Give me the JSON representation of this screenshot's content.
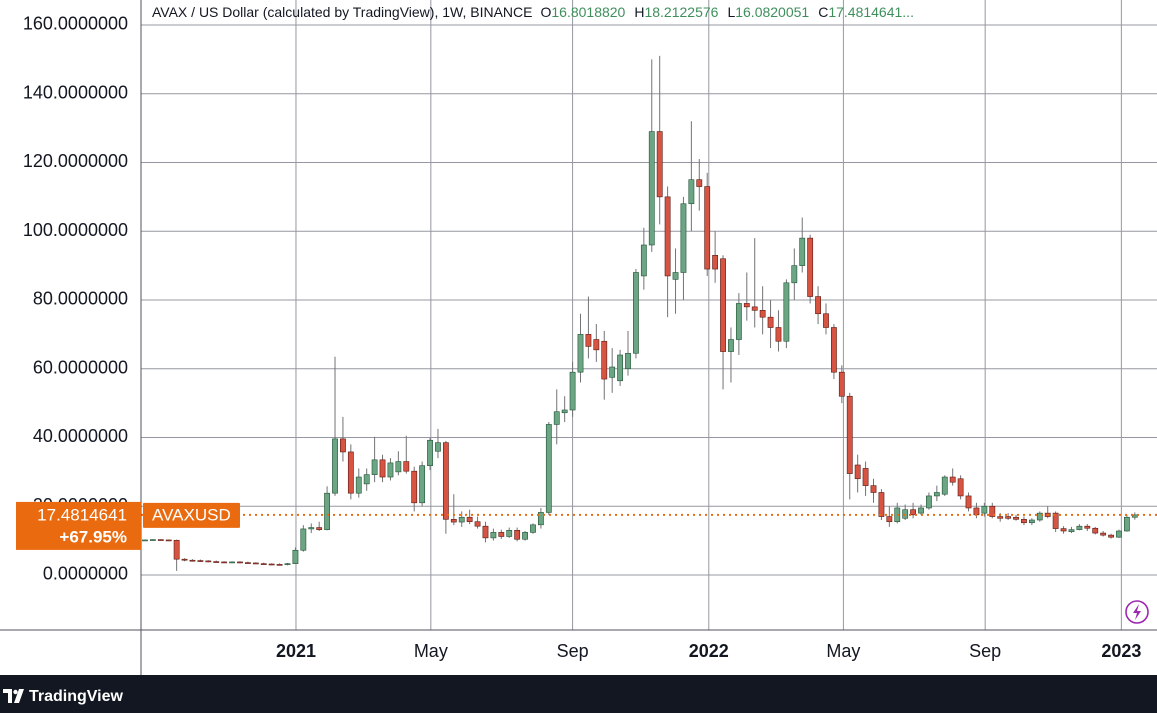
{
  "chart_data": {
    "type": "candlestick",
    "title": "AVAX / US Dollar (calculated by TradingView), 1W, BINANCE",
    "header_ohlc": [
      {
        "key": "O",
        "value": "16.8018820"
      },
      {
        "key": "H",
        "value": "18.2122576"
      },
      {
        "key": "L",
        "value": "16.0820051"
      },
      {
        "key": "C",
        "value": "17.4814641..."
      }
    ],
    "series": [
      {
        "name": "AVAXUSD",
        "up_color": "#6ba583",
        "down_color": "#d75442",
        "wick_color": "#737375",
        "open": [
          10.1,
          10.2,
          10.3,
          10.2,
          10.1,
          4.6,
          4.3,
          4.2,
          4.1,
          3.9,
          3.8,
          3.7,
          3.8,
          3.6,
          3.5,
          3.3,
          3.2,
          3.1,
          3.0,
          3.3,
          7.2,
          13.4,
          13.8,
          13.2,
          23.8,
          39.6,
          35.8,
          23.8,
          26.5,
          29.2,
          33.5,
          28.5,
          30.0,
          33.0,
          30.2,
          21.0,
          31.8,
          36.0,
          38.5,
          16.2,
          15.4,
          16.8,
          15.5,
          14.2,
          10.8,
          12.4,
          11.2,
          13.0,
          10.4,
          12.4,
          14.6,
          18.2,
          43.8,
          47.2,
          48.0,
          59.0,
          70.0,
          68.5,
          68.0,
          57.5,
          56.5,
          60.0,
          64.5,
          87.0,
          96.0,
          129.0,
          110.0,
          86.0,
          88.0,
          108.0,
          115.0,
          113.0,
          93.0,
          92.0,
          65.0,
          68.5,
          79.0,
          78.0,
          77.0,
          75.0,
          72.0,
          68.0,
          85.0,
          90.0,
          98.0,
          81.0,
          76.0,
          72.0,
          59.0,
          52.0,
          32.0,
          31.0,
          26.0,
          24.0,
          17.0,
          15.5,
          16.5,
          19.0,
          18.0,
          19.5,
          23.0,
          23.5,
          28.5,
          28.0,
          23.0,
          19.5,
          18.0,
          20.0,
          17.0,
          17.0,
          16.8,
          16.2,
          15.2,
          16.0,
          18.0,
          18.0,
          13.5,
          12.6,
          13.2,
          14.2,
          13.6,
          12.2,
          11.6,
          11.0,
          12.8,
          16.801882
        ],
        "high": [
          10.3,
          10.4,
          10.4,
          10.3,
          10.3,
          4.9,
          4.6,
          4.5,
          4.3,
          4.2,
          4.0,
          4.0,
          4.0,
          3.9,
          3.7,
          3.6,
          3.4,
          3.4,
          3.5,
          8.0,
          14.5,
          15.0,
          15.5,
          25.8,
          63.5,
          46.0,
          38.0,
          31.0,
          31.0,
          40.2,
          35.0,
          34.0,
          36.0,
          40.5,
          31.5,
          33.0,
          40.0,
          42.5,
          39.0,
          23.5,
          18.5,
          19.0,
          17.0,
          15.5,
          13.5,
          13.2,
          13.8,
          13.8,
          12.8,
          15.0,
          19.5,
          44.5,
          54.0,
          52.0,
          62.0,
          76.0,
          81.0,
          73.0,
          71.0,
          66.0,
          65.5,
          71.0,
          89.0,
          101.0,
          150.0,
          151.0,
          113.0,
          95.0,
          110.0,
          132.0,
          121.0,
          117.0,
          100.0,
          93.0,
          72.0,
          82.0,
          88.0,
          98.0,
          84.0,
          80.0,
          77.0,
          86.0,
          95.0,
          104.0,
          99.0,
          84.0,
          79.0,
          73.0,
          61.0,
          53.0,
          35.0,
          33.0,
          28.0,
          25.0,
          20.0,
          21.0,
          20.5,
          21.0,
          20.5,
          24.0,
          26.0,
          29.0,
          31.0,
          29.0,
          24.0,
          21.0,
          21.0,
          21.0,
          18.0,
          18.0,
          17.5,
          17.0,
          16.5,
          18.5,
          20.0,
          18.5,
          14.2,
          14.0,
          14.8,
          14.8,
          14.0,
          12.8,
          12.0,
          13.2,
          17.5,
          18.2122576
        ],
        "low": [
          10.0,
          10.1,
          10.1,
          10.0,
          1.2,
          4.0,
          3.9,
          3.8,
          3.7,
          3.6,
          3.5,
          3.5,
          3.4,
          3.3,
          3.2,
          3.0,
          2.9,
          2.8,
          2.8,
          3.2,
          6.8,
          12.2,
          12.8,
          13.0,
          23.0,
          33.0,
          22.0,
          22.5,
          24.5,
          27.0,
          27.0,
          27.5,
          29.0,
          29.5,
          18.5,
          20.0,
          30.5,
          34.0,
          12.0,
          14.5,
          14.0,
          14.8,
          13.5,
          9.5,
          10.0,
          10.5,
          10.8,
          9.8,
          10.0,
          12.0,
          13.5,
          17.5,
          38.0,
          44.5,
          46.0,
          56.0,
          63.0,
          62.0,
          51.0,
          53.0,
          55.0,
          58.0,
          63.0,
          83.0,
          94.0,
          102.0,
          75.0,
          76.0,
          80.0,
          100.0,
          106.0,
          87.0,
          85.0,
          54.0,
          56.0,
          64.0,
          74.0,
          72.0,
          70.0,
          66.0,
          65.0,
          66.0,
          80.0,
          88.0,
          79.0,
          73.0,
          70.0,
          57.0,
          50.0,
          22.0,
          24.0,
          23.0,
          21.0,
          16.0,
          14.0,
          15.0,
          16.0,
          16.5,
          17.5,
          19.0,
          21.5,
          23.0,
          26.0,
          22.0,
          18.5,
          16.5,
          17.0,
          16.5,
          15.5,
          16.0,
          15.8,
          14.5,
          14.5,
          15.5,
          16.5,
          12.5,
          12.0,
          12.2,
          13.0,
          12.8,
          11.8,
          11.2,
          10.6,
          10.8,
          12.6,
          16.0820051
        ],
        "close": [
          10.2,
          10.3,
          10.2,
          10.1,
          4.6,
          4.3,
          4.2,
          4.1,
          3.9,
          3.8,
          3.7,
          3.8,
          3.6,
          3.5,
          3.3,
          3.2,
          3.1,
          3.0,
          3.3,
          7.2,
          13.4,
          13.8,
          13.2,
          23.8,
          39.6,
          35.8,
          23.8,
          28.5,
          29.2,
          33.5,
          28.5,
          32.6,
          33.0,
          30.2,
          21.0,
          31.8,
          39.2,
          38.5,
          16.2,
          15.4,
          16.8,
          15.5,
          14.2,
          10.8,
          12.4,
          11.2,
          13.0,
          10.4,
          12.4,
          14.6,
          18.2,
          43.8,
          47.5,
          48.0,
          59.0,
          70.0,
          66.5,
          65.5,
          57.0,
          60.5,
          64.0,
          64.5,
          88.0,
          96.0,
          129.0,
          110.0,
          87.0,
          88.0,
          108.0,
          115.0,
          113.0,
          89.0,
          89.0,
          65.0,
          68.5,
          79.0,
          78.0,
          77.0,
          75.0,
          72.0,
          68.0,
          85.0,
          90.0,
          98.0,
          81.0,
          76.0,
          72.0,
          59.0,
          52.0,
          29.5,
          28.0,
          26.0,
          24.0,
          17.0,
          15.5,
          19.5,
          19.0,
          17.5,
          19.5,
          23.0,
          24.0,
          28.5,
          27.0,
          23.0,
          19.5,
          17.5,
          20.0,
          17.0,
          16.5,
          16.5,
          16.2,
          15.2,
          16.0,
          18.0,
          17.0,
          13.5,
          12.8,
          13.2,
          14.2,
          13.6,
          12.2,
          11.6,
          11.0,
          12.8,
          16.8,
          17.4814641
        ]
      }
    ],
    "last_price": {
      "value": 17.4814641,
      "label": "17.4814641",
      "change": "+67.95%",
      "color": "#ea6a10"
    },
    "xlim": [
      -0.5,
      127.8
    ],
    "xticks": [
      {
        "value": 19.07,
        "label": "2021"
      },
      {
        "value": 36.1,
        "label": "May"
      },
      {
        "value": 54.0,
        "label": "Sep"
      },
      {
        "value": 71.2,
        "label": "2022"
      },
      {
        "value": 88.2,
        "label": "May"
      },
      {
        "value": 106.1,
        "label": "Sep"
      },
      {
        "value": 123.3,
        "label": "2023"
      }
    ],
    "ylim": [
      -16,
      167.27
    ],
    "yticks": [
      {
        "value": 0,
        "label": "0.0000000"
      },
      {
        "value": 20,
        "label": "20.0000000"
      },
      {
        "value": 40,
        "label": "40.0000000"
      },
      {
        "value": 60,
        "label": "60.0000000"
      },
      {
        "value": 80,
        "label": "80.0000000"
      },
      {
        "value": 100,
        "label": "100.0000000"
      },
      {
        "value": 120,
        "label": "120.0000000"
      },
      {
        "value": 140,
        "label": "140.0000000"
      },
      {
        "value": 160,
        "label": "160.0000000"
      }
    ],
    "grid": true,
    "footer": "TradingView"
  }
}
